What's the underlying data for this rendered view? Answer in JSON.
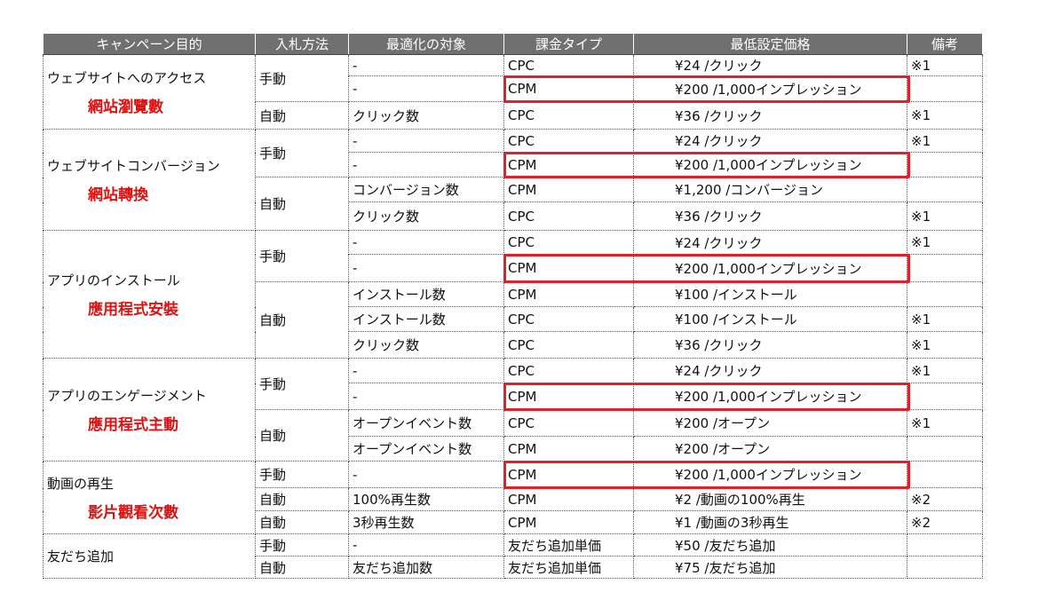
{
  "table": {
    "header": [
      "キャンペーン目的",
      "入札方法",
      "最適化の対象",
      "課金タイプ",
      "最低設定価格",
      "備考"
    ],
    "groups": [
      {
        "purpose": "ウェブサイトへのアクセス",
        "purpose_zh": "網站瀏覽數",
        "bids": [
          {
            "method": "手動",
            "rows": [
              {
                "target": "-",
                "billing": "CPC",
                "price": "¥24 /クリック",
                "note": "※1"
              },
              {
                "target": "-",
                "billing": "CPM",
                "price": "¥200 /1,000インプレッション"
              }
            ]
          },
          {
            "method": "自動",
            "rows": [
              {
                "target": "クリック数",
                "billing": "CPC",
                "price": "¥36 /クリック",
                "note": "※1"
              }
            ]
          }
        ]
      },
      {
        "purpose": "ウェブサイトコンバージョン",
        "purpose_zh": "網站轉換",
        "bids": [
          {
            "method": "手動",
            "rows": [
              {
                "target": "-",
                "billing": "CPC",
                "price": "¥24 /クリック",
                "note": "※1"
              },
              {
                "target": "-",
                "billing": "CPM",
                "price": "¥200 /1,000インプレッション"
              }
            ]
          },
          {
            "method": "自動",
            "rows": [
              {
                "target": "コンバージョン数",
                "billing": "CPM",
                "price": "¥1,200 /コンバージョン"
              },
              {
                "target": "クリック数",
                "billing": "CPC",
                "price": "¥36 /クリック",
                "note": "※1"
              }
            ]
          }
        ]
      },
      {
        "purpose": "アプリのインストール",
        "purpose_zh": "應用程式安裝",
        "bids": [
          {
            "method": "手動",
            "rows": [
              {
                "target": "-",
                "billing": "CPC",
                "price": "¥24 /クリック",
                "note": "※1"
              },
              {
                "target": "-",
                "billing": "CPM",
                "price": "¥200 /1,000インプレッション"
              }
            ]
          },
          {
            "method": "自動",
            "rows": [
              {
                "target": "インストール数",
                "billing": "CPM",
                "price": "¥100 /インストール"
              },
              {
                "target": "インストール数",
                "billing": "CPC",
                "price": "¥100 /インストール",
                "note": "※1"
              },
              {
                "target": "クリック数",
                "billing": "CPC",
                "price": "¥36 /クリック",
                "note": "※1"
              }
            ]
          }
        ]
      },
      {
        "purpose": "アプリのエンゲージメント",
        "purpose_zh": "應用程式主動",
        "bids": [
          {
            "method": "手動",
            "rows": [
              {
                "target": "-",
                "billing": "CPC",
                "price": "¥24 /クリック",
                "note": "※1"
              },
              {
                "target": "-",
                "billing": "CPM",
                "price": "¥200 /1,000インプレッション"
              }
            ]
          },
          {
            "method": "自動",
            "rows": [
              {
                "target": "オープンイベント数",
                "billing": "CPC",
                "price": "¥200 /オープン",
                "note": "※1"
              },
              {
                "target": "オープンイベント数",
                "billing": "CPM",
                "price": "¥200 /オープン"
              }
            ]
          }
        ]
      },
      {
        "purpose": "動画の再生",
        "purpose_zh": "影片觀看次數",
        "bids": [
          {
            "method": "手動",
            "rows": [
              {
                "target": "-",
                "billing": "CPM",
                "price": "¥200 /1,000インプレッション"
              }
            ]
          },
          {
            "method": "自動",
            "rows": [
              {
                "target": "100%再生数",
                "billing": "CPM",
                "price": "¥2 /動画の100%再生",
                "note": "※2"
              }
            ]
          },
          {
            "method": "自動",
            "rows": [
              {
                "target": "3秒再生数",
                "billing": "CPM",
                "price": "¥1 /動画の3秒再生",
                "note": "※2"
              }
            ]
          }
        ]
      },
      {
        "purpose": "友だち追加",
        "bids": [
          {
            "method": "手動",
            "rows": [
              {
                "target": "-",
                "billing": "友だち追加単価",
                "price": "¥50 /友だち追加"
              }
            ]
          },
          {
            "method": "自動",
            "rows": [
              {
                "target": "友だち追加数",
                "billing": "友だち追加単価",
                "price": "¥75 /友だち追加"
              }
            ]
          }
        ]
      }
    ]
  }
}
